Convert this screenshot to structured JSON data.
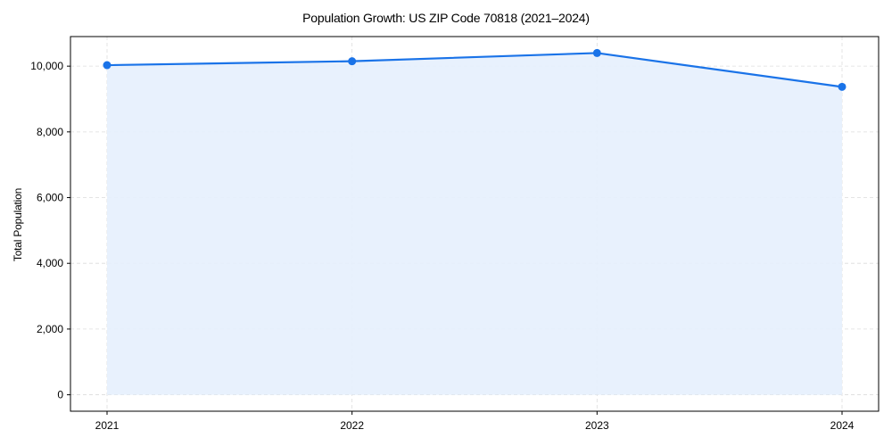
{
  "chart_data": {
    "type": "line",
    "title": "Population Growth: US ZIP Code 70818 (2021–2024)",
    "xlabel": "",
    "ylabel": "Total Population",
    "categories": [
      "2021",
      "2022",
      "2023",
      "2024"
    ],
    "series": [
      {
        "name": "Total Population",
        "values": [
          10030,
          10150,
          10400,
          9370
        ],
        "color": "#1a73e8",
        "fill_color": "#e5effd",
        "marker": "circle",
        "area_fill": true
      }
    ],
    "ylim": [
      -500,
      10900
    ],
    "yticks": [
      0,
      2000,
      4000,
      6000,
      8000,
      10000
    ],
    "ytick_labels": [
      "0",
      "2,000",
      "4,000",
      "6,000",
      "8,000",
      "10,000"
    ],
    "grid": true,
    "grid_style": "dashed",
    "legend": "none"
  }
}
